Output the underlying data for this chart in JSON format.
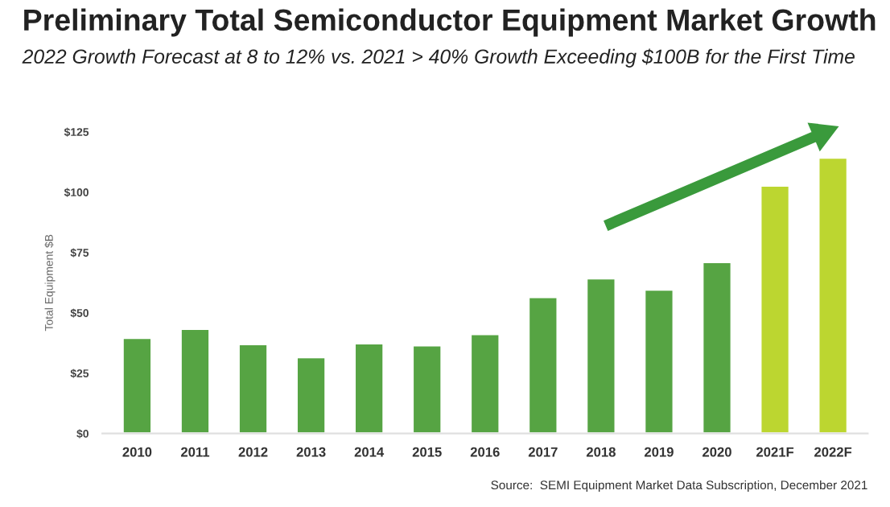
{
  "chart_data": {
    "type": "bar",
    "title": "Preliminary Total Semiconductor Equipment Market Growth",
    "subtitle": "2022 Growth Forecast at 8 to 12% vs. 2021 > 40% Growth Exceeding $100B for the First Time",
    "ylabel": "Total Equipment $B",
    "categories": [
      "2010",
      "2011",
      "2012",
      "2013",
      "2014",
      "2015",
      "2016",
      "2017",
      "2018",
      "2019",
      "2020",
      "2021F",
      "2022F"
    ],
    "values": [
      39.6,
      43.4,
      37.0,
      31.6,
      37.4,
      36.5,
      41.2,
      56.5,
      64.3,
      59.6,
      71.0,
      102.7,
      114.3
    ],
    "colors": [
      "#56a443",
      "#56a443",
      "#56a443",
      "#56a443",
      "#56a443",
      "#56a443",
      "#56a443",
      "#56a443",
      "#56a443",
      "#56a443",
      "#56a443",
      "#bcd630",
      "#bcd630"
    ],
    "ylim": [
      0,
      125
    ],
    "yticks": [
      {
        "value": 0,
        "label": "$0"
      },
      {
        "value": 25,
        "label": "$25"
      },
      {
        "value": 50,
        "label": "$50"
      },
      {
        "value": 75,
        "label": "$75"
      },
      {
        "value": 100,
        "label": "$100"
      },
      {
        "value": 125,
        "label": "$125"
      }
    ],
    "grid": false,
    "annotations": [
      "Source:  SEMI Equipment Market Data Subscription, December 2021"
    ]
  }
}
